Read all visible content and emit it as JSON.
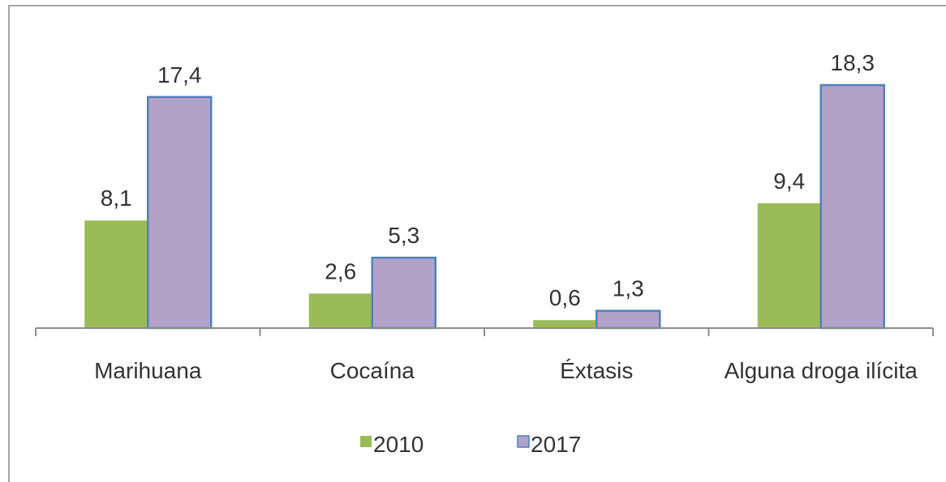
{
  "chart_data": {
    "type": "bar",
    "title": "",
    "xlabel": "",
    "ylabel": "",
    "categories": [
      "Marihuana",
      "Cocaína",
      "Éxtasis",
      "Alguna droga ilícita"
    ],
    "series": [
      {
        "name": "2010",
        "values": [
          8.1,
          2.6,
          0.6,
          9.4
        ],
        "labels": [
          "8,1",
          "2,6",
          "0,6",
          "9,4"
        ],
        "color": "#9bbb59"
      },
      {
        "name": "2017",
        "values": [
          17.4,
          5.3,
          1.3,
          18.3
        ],
        "labels": [
          "17,4",
          "5,3",
          "1,3",
          "18,3"
        ],
        "color": "#b3a2c7"
      }
    ],
    "ylim": [
      0,
      18.3
    ],
    "grid": false,
    "legend": "bottom",
    "bar_outline_color": "#4f81bd"
  }
}
